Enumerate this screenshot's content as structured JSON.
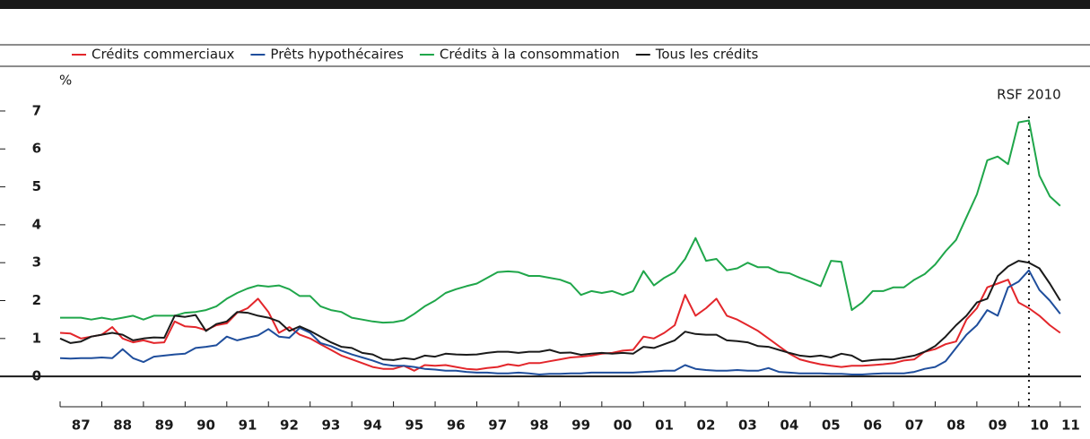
{
  "chart_data": {
    "type": "line",
    "y_label": "%",
    "x": [
      1987,
      1987.25,
      1987.5,
      1987.75,
      1988,
      1988.25,
      1988.5,
      1988.75,
      1989,
      1989.25,
      1989.5,
      1989.75,
      1990,
      1990.25,
      1990.5,
      1990.75,
      1991,
      1991.25,
      1991.5,
      1991.75,
      1992,
      1992.25,
      1992.5,
      1992.75,
      1993,
      1993.25,
      1993.5,
      1993.75,
      1994,
      1994.25,
      1994.5,
      1994.75,
      1995,
      1995.25,
      1995.5,
      1995.75,
      1996,
      1996.25,
      1996.5,
      1996.75,
      1997,
      1997.25,
      1997.5,
      1997.75,
      1998,
      1998.25,
      1998.5,
      1998.75,
      1999,
      1999.25,
      1999.5,
      1999.75,
      2000,
      2000.25,
      2000.5,
      2000.75,
      2001,
      2001.25,
      2001.5,
      2001.75,
      2002,
      2002.25,
      2002.5,
      2002.75,
      2003,
      2003.25,
      2003.5,
      2003.75,
      2004,
      2004.25,
      2004.5,
      2004.75,
      2005,
      2005.25,
      2005.5,
      2005.75,
      2006,
      2006.25,
      2006.5,
      2006.75,
      2007,
      2007.25,
      2007.5,
      2007.75,
      2008,
      2008.25,
      2008.5,
      2008.75,
      2009,
      2009.25,
      2009.5,
      2009.75,
      2010,
      2010.25,
      2010.5,
      2010.75,
      2011
    ],
    "series": [
      {
        "name": "Crédits commerciaux",
        "color": "#e3262b",
        "values": [
          1.15,
          1.13,
          1.0,
          1.05,
          1.1,
          1.3,
          1.0,
          0.9,
          0.95,
          0.88,
          0.9,
          1.45,
          1.32,
          1.3,
          1.22,
          1.35,
          1.4,
          1.68,
          1.8,
          2.05,
          1.7,
          1.15,
          1.3,
          1.1,
          1.0,
          0.85,
          0.7,
          0.55,
          0.45,
          0.35,
          0.25,
          0.2,
          0.2,
          0.28,
          0.15,
          0.3,
          0.28,
          0.3,
          0.25,
          0.2,
          0.18,
          0.22,
          0.25,
          0.32,
          0.28,
          0.35,
          0.35,
          0.4,
          0.45,
          0.5,
          0.52,
          0.55,
          0.6,
          0.62,
          0.68,
          0.7,
          1.05,
          1.0,
          1.15,
          1.35,
          2.15,
          1.6,
          1.8,
          2.05,
          1.6,
          1.5,
          1.35,
          1.2,
          1.0,
          0.8,
          0.6,
          0.45,
          0.38,
          0.32,
          0.28,
          0.25,
          0.28,
          0.28,
          0.3,
          0.32,
          0.35,
          0.42,
          0.45,
          0.65,
          0.72,
          0.85,
          0.92,
          1.5,
          1.8,
          2.35,
          2.45,
          2.55,
          1.95,
          1.8,
          1.6,
          1.35,
          1.15
        ]
      },
      {
        "name": "Prêts hypothécaires",
        "color": "#1f4e9c",
        "values": [
          0.48,
          0.47,
          0.48,
          0.48,
          0.5,
          0.48,
          0.72,
          0.48,
          0.38,
          0.52,
          0.55,
          0.58,
          0.6,
          0.75,
          0.78,
          0.82,
          1.05,
          0.95,
          1.02,
          1.08,
          1.25,
          1.05,
          1.02,
          1.28,
          1.15,
          0.88,
          0.8,
          0.68,
          0.58,
          0.5,
          0.42,
          0.32,
          0.28,
          0.28,
          0.25,
          0.2,
          0.18,
          0.15,
          0.15,
          0.12,
          0.1,
          0.1,
          0.08,
          0.08,
          0.1,
          0.08,
          0.05,
          0.07,
          0.07,
          0.08,
          0.08,
          0.1,
          0.1,
          0.1,
          0.1,
          0.1,
          0.12,
          0.13,
          0.15,
          0.15,
          0.3,
          0.2,
          0.17,
          0.15,
          0.15,
          0.17,
          0.15,
          0.15,
          0.22,
          0.12,
          0.1,
          0.08,
          0.08,
          0.08,
          0.07,
          0.07,
          0.05,
          0.05,
          0.07,
          0.08,
          0.08,
          0.08,
          0.12,
          0.2,
          0.25,
          0.4,
          0.75,
          1.1,
          1.35,
          1.75,
          1.6,
          2.35,
          2.5,
          2.8,
          2.28,
          2.0,
          1.65
        ]
      },
      {
        "name": "Crédits à la consommation",
        "color": "#1fa64a",
        "values": [
          1.55,
          1.55,
          1.55,
          1.5,
          1.55,
          1.5,
          1.55,
          1.6,
          1.5,
          1.6,
          1.6,
          1.6,
          1.68,
          1.7,
          1.75,
          1.85,
          2.05,
          2.2,
          2.32,
          2.4,
          2.37,
          2.4,
          2.3,
          2.12,
          2.12,
          1.85,
          1.75,
          1.7,
          1.55,
          1.5,
          1.45,
          1.42,
          1.43,
          1.48,
          1.65,
          1.85,
          2.0,
          2.2,
          2.3,
          2.38,
          2.45,
          2.6,
          2.75,
          2.77,
          2.75,
          2.65,
          2.65,
          2.6,
          2.55,
          2.45,
          2.15,
          2.25,
          2.2,
          2.25,
          2.15,
          2.25,
          2.78,
          2.4,
          2.6,
          2.75,
          3.1,
          3.65,
          3.05,
          3.1,
          2.8,
          2.85,
          3.0,
          2.88,
          2.88,
          2.75,
          2.72,
          2.6,
          2.5,
          2.38,
          3.05,
          3.02,
          1.75,
          1.95,
          2.25,
          2.25,
          2.35,
          2.35,
          2.55,
          2.7,
          2.95,
          3.3,
          3.6,
          4.2,
          4.8,
          5.7,
          5.8,
          5.6,
          6.7,
          6.75,
          5.3,
          4.75,
          4.5
        ]
      },
      {
        "name": "Tous les crédits",
        "color": "#1a1a1a",
        "values": [
          1.0,
          0.88,
          0.92,
          1.05,
          1.1,
          1.15,
          1.1,
          0.95,
          1.0,
          1.03,
          1.02,
          1.6,
          1.57,
          1.62,
          1.2,
          1.38,
          1.45,
          1.7,
          1.68,
          1.6,
          1.55,
          1.45,
          1.2,
          1.32,
          1.2,
          1.05,
          0.9,
          0.78,
          0.75,
          0.62,
          0.58,
          0.45,
          0.43,
          0.48,
          0.45,
          0.55,
          0.52,
          0.6,
          0.58,
          0.57,
          0.58,
          0.62,
          0.65,
          0.65,
          0.62,
          0.65,
          0.65,
          0.7,
          0.62,
          0.63,
          0.57,
          0.6,
          0.62,
          0.6,
          0.62,
          0.6,
          0.78,
          0.75,
          0.85,
          0.95,
          1.18,
          1.12,
          1.1,
          1.1,
          0.95,
          0.93,
          0.9,
          0.8,
          0.78,
          0.7,
          0.62,
          0.55,
          0.52,
          0.55,
          0.5,
          0.6,
          0.55,
          0.4,
          0.43,
          0.45,
          0.45,
          0.5,
          0.55,
          0.65,
          0.8,
          1.05,
          1.35,
          1.6,
          1.95,
          2.05,
          2.65,
          2.9,
          3.05,
          3.0,
          2.85,
          2.45,
          2.0
        ]
      }
    ],
    "xlim": [
      1987,
      2011.5
    ],
    "xticks": [
      {
        "value": 1987.5,
        "label": "87"
      },
      {
        "value": 1988.5,
        "label": "88"
      },
      {
        "value": 1989.5,
        "label": "89"
      },
      {
        "value": 1990.5,
        "label": "90"
      },
      {
        "value": 1991.5,
        "label": "91"
      },
      {
        "value": 1992.5,
        "label": "92"
      },
      {
        "value": 1993.5,
        "label": "93"
      },
      {
        "value": 1994.5,
        "label": "94"
      },
      {
        "value": 1995.5,
        "label": "95"
      },
      {
        "value": 1996.5,
        "label": "96"
      },
      {
        "value": 1997.5,
        "label": "97"
      },
      {
        "value": 1998.5,
        "label": "98"
      },
      {
        "value": 1999.5,
        "label": "99"
      },
      {
        "value": 2000.5,
        "label": "00"
      },
      {
        "value": 2001.5,
        "label": "01"
      },
      {
        "value": 2002.5,
        "label": "02"
      },
      {
        "value": 2003.5,
        "label": "03"
      },
      {
        "value": 2004.5,
        "label": "04"
      },
      {
        "value": 2005.5,
        "label": "05"
      },
      {
        "value": 2006.5,
        "label": "06"
      },
      {
        "value": 2007.5,
        "label": "07"
      },
      {
        "value": 2008.5,
        "label": "08"
      },
      {
        "value": 2009.5,
        "label": "09"
      },
      {
        "value": 2010.5,
        "label": "10"
      },
      {
        "value": 2011.25,
        "label": "11"
      }
    ],
    "xminorticks": [
      1987,
      1988,
      1989,
      1990,
      1991,
      1992,
      1993,
      1994,
      1995,
      1996,
      1997,
      1998,
      1999,
      2000,
      2001,
      2002,
      2003,
      2004,
      2005,
      2006,
      2007,
      2008,
      2009,
      2010,
      2011
    ],
    "ylim": [
      -0.8,
      7.4
    ],
    "yticks": [
      0,
      1,
      2,
      3,
      4,
      5,
      6,
      7
    ],
    "annotations": [
      {
        "text": "RSF 2010",
        "x": 2010.25
      }
    ],
    "legend": "top-left"
  }
}
